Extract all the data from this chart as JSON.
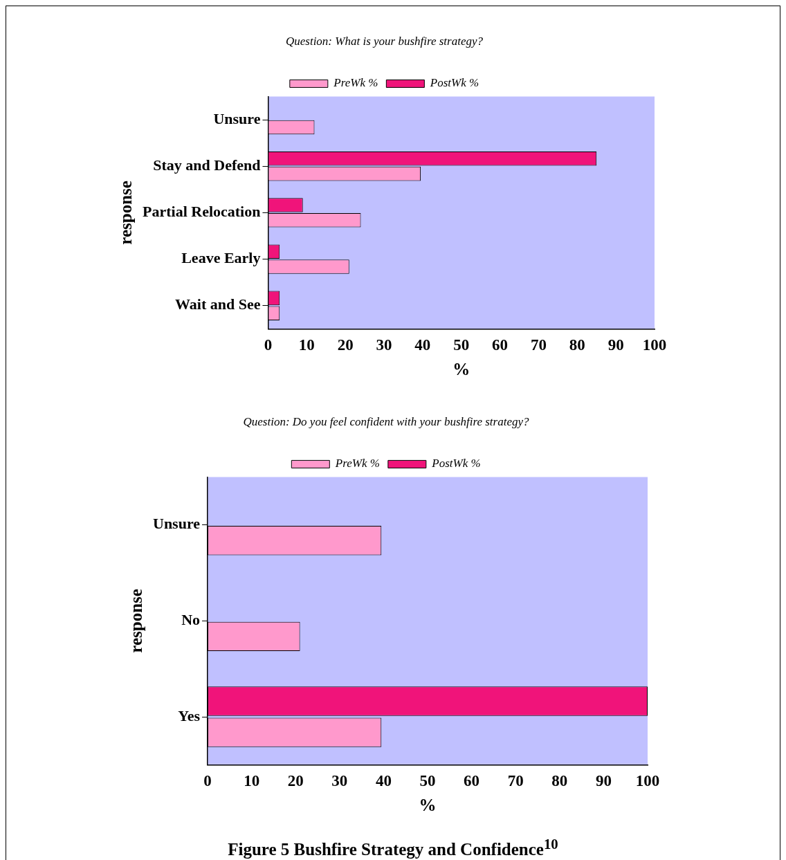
{
  "chart_data": [
    {
      "type": "bar",
      "orientation": "horizontal",
      "title": "Question: What is your bushfire strategy?",
      "xlabel": "%",
      "ylabel": "response",
      "categories": [
        "Unsure",
        "Stay and Defend",
        "Partial Relocation",
        "Leave Early",
        "Wait and See"
      ],
      "xlim": [
        0,
        100
      ],
      "xticks": [
        0,
        10,
        20,
        30,
        40,
        50,
        60,
        70,
        80,
        90,
        100
      ],
      "legend": "top",
      "series": [
        {
          "name": "PreWk %",
          "color": "#ff99cc",
          "values": [
            12,
            39.5,
            24,
            21,
            3
          ]
        },
        {
          "name": "PostWk %",
          "color": "#f0147a",
          "values": [
            null,
            85,
            9,
            3,
            3
          ]
        }
      ]
    },
    {
      "type": "bar",
      "orientation": "horizontal",
      "title": "Question: Do you feel confident with your bushfire strategy?",
      "xlabel": "%",
      "ylabel": "response",
      "categories": [
        "Unsure",
        "No",
        "Yes"
      ],
      "xlim": [
        0,
        100
      ],
      "xticks": [
        0,
        10,
        20,
        30,
        40,
        50,
        60,
        70,
        80,
        90,
        100
      ],
      "legend": "top",
      "annotations": [
        "Figure 5 Bushfire Strategy and Confidence$^{10}$"
      ],
      "series": [
        {
          "name": "PreWk %",
          "color": "#ff99cc",
          "values": [
            39.5,
            21,
            39.5
          ]
        },
        {
          "name": "PostWk %",
          "color": "#f0147a",
          "values": [
            null,
            null,
            100
          ]
        }
      ]
    }
  ]
}
